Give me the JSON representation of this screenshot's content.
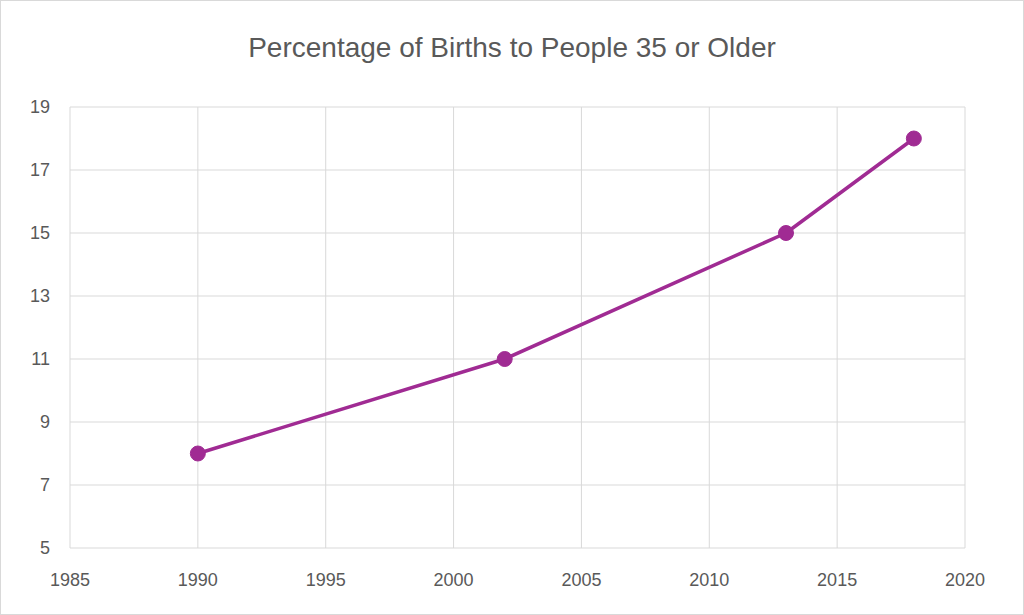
{
  "chart_data": {
    "type": "line",
    "title": "Percentage of Births to People 35 or Older",
    "x": [
      1990,
      2002,
      2013,
      2018
    ],
    "values": [
      8,
      11,
      15,
      18
    ],
    "color": "#a02b93",
    "xlim": [
      1985,
      2020
    ],
    "xticks": [
      1985,
      1990,
      1995,
      2000,
      2005,
      2010,
      2015,
      2020
    ],
    "ylim": [
      5,
      19
    ],
    "yticks": [
      5,
      7,
      9,
      11,
      13,
      15,
      17,
      19
    ],
    "grid": true,
    "marker": "circle"
  }
}
